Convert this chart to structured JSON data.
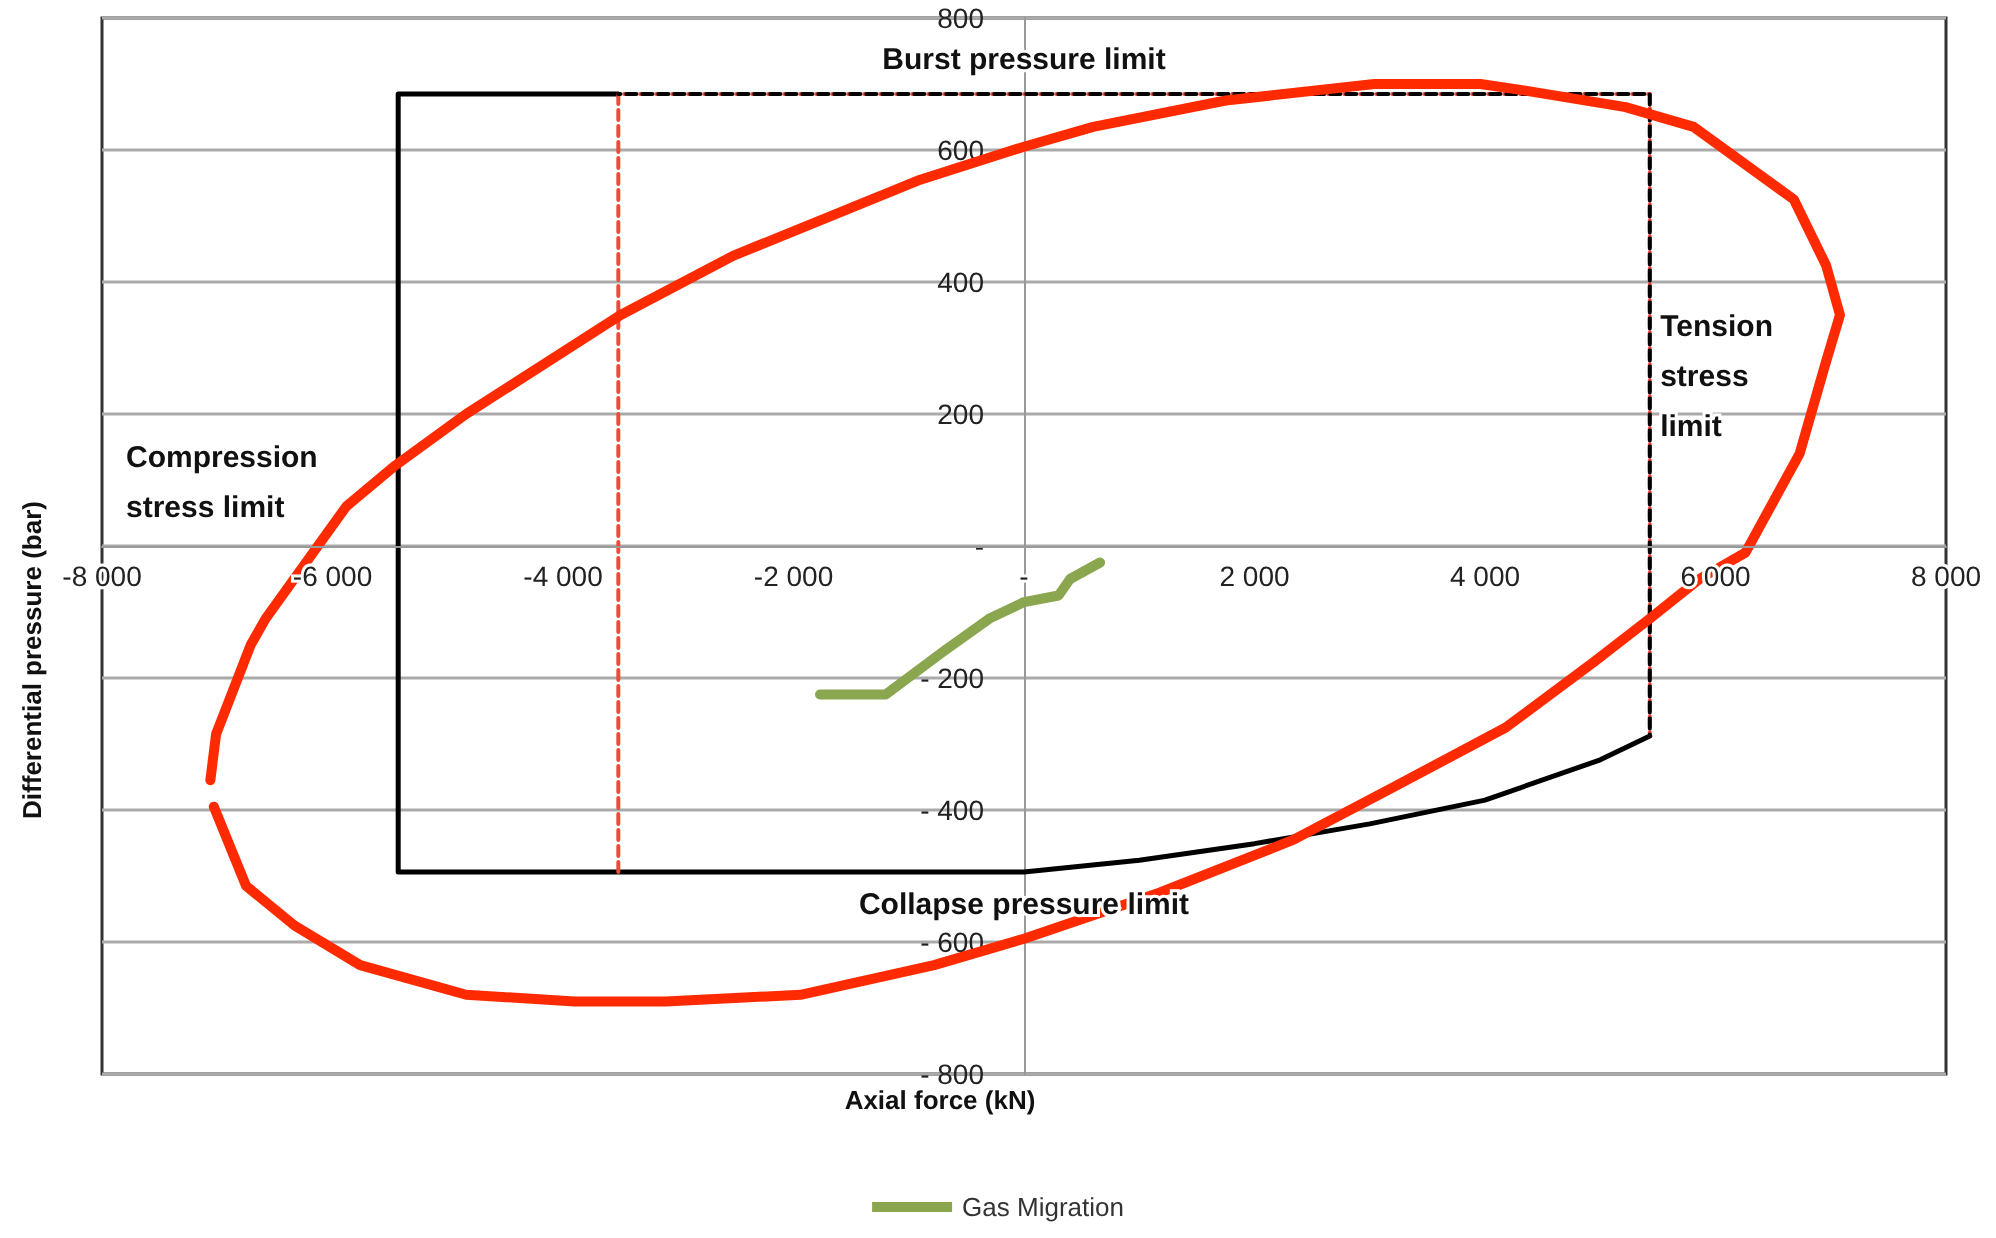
{
  "chart_data": {
    "type": "line",
    "xlabel": "Axial force (kN)",
    "ylabel": "Differential pressure (bar)",
    "xlim": [
      -8000,
      8000
    ],
    "ylim": [
      -800,
      800
    ],
    "xticks": [
      {
        "value": -8000,
        "label": "-8 000"
      },
      {
        "value": -6000,
        "label": "-6 000"
      },
      {
        "value": -4000,
        "label": "-4 000"
      },
      {
        "value": -2000,
        "label": "-2 000"
      },
      {
        "value": 0,
        "label": "-"
      },
      {
        "value": 2000,
        "label": "2 000"
      },
      {
        "value": 4000,
        "label": "4 000"
      },
      {
        "value": 6000,
        "label": "6 000"
      },
      {
        "value": 8000,
        "label": "8 000"
      }
    ],
    "yticks": [
      800,
      600,
      400,
      200,
      {
        "value": 0,
        "label": "-"
      },
      {
        "value": -200,
        "label": "- 200"
      },
      {
        "value": -400,
        "label": "- 400"
      },
      {
        "value": -600,
        "label": "- 600"
      },
      {
        "value": -800,
        "label": "- 800"
      }
    ],
    "grid": "y",
    "legend": "bottom",
    "marker": "none",
    "series": [
      {
        "color": "#000000",
        "line_style": "solid",
        "x": [
          -3520,
          -5430,
          -5430,
          0,
          1000,
          2000,
          3000,
          4000,
          5000,
          5430
        ],
        "values": [
          685,
          685,
          -494,
          -494,
          -476,
          -451,
          -421,
          -385,
          -324,
          -288
        ]
      },
      {
        "color": "#f04a3a",
        "line_style": "dashed",
        "x": [
          -3520,
          -3520,
          5430,
          5430
        ],
        "values": [
          -494,
          685,
          685,
          -288
        ]
      },
      {
        "color": "#000000",
        "line_style": "dashed",
        "x": [
          -3520,
          5430,
          5430
        ],
        "values": [
          685,
          685,
          -288
        ]
      },
      {
        "color": "#ff2a00",
        "line_style": "solid",
        "x": [
          -7060,
          -7010,
          -6710,
          -6580,
          -5880,
          -5470,
          -4840,
          -3500,
          -2520,
          -900,
          0,
          600,
          1750,
          3040,
          3960,
          4350,
          5220,
          5810,
          6680,
          6960,
          7080,
          6960,
          6730,
          6260,
          5860,
          5430,
          4950,
          4180,
          3210,
          2340,
          1180,
          0,
          -780,
          -1940,
          -3110,
          -3900,
          -4840,
          -5760,
          -6330,
          -6750,
          -7030
        ],
        "values": [
          -355,
          -285,
          -150,
          -110,
          60,
          120,
          200,
          350,
          440,
          555,
          605,
          635,
          675,
          700,
          700,
          690,
          665,
          635,
          525,
          425,
          350,
          280,
          140,
          -10,
          -50,
          -110,
          -175,
          -275,
          -365,
          -445,
          -525,
          -595,
          -635,
          -680,
          -690,
          -690,
          -680,
          -635,
          -575,
          -515,
          -395
        ]
      },
      {
        "name": "Gas Migration",
        "color": "#8aa64f",
        "line_style": "solid",
        "x": [
          -1770,
          -1200,
          -700,
          -300,
          0,
          300,
          400,
          660
        ],
        "values": [
          -225,
          -225,
          -160,
          -110,
          -85,
          -75,
          -50,
          -25
        ]
      }
    ],
    "annotations": [
      "Burst pressure limit",
      "Collapse pressure limit",
      "Compression\nstress limit",
      "Tension\nstress\nlimit"
    ]
  }
}
